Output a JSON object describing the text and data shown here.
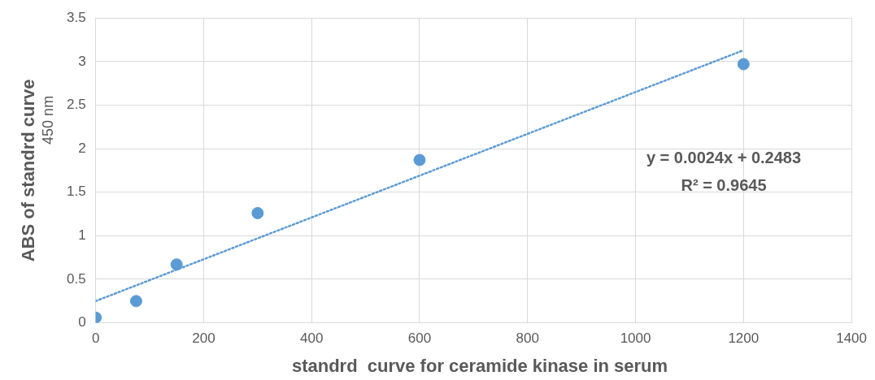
{
  "chart_data": {
    "type": "scatter",
    "xlabel": "standrd  curve for ceramide kinase in serum",
    "ylabel": "ABS of standrd curve\n450 nm",
    "annotations": [
      "y = 0.0024x + 0.2483",
      "R² = 0.9645"
    ],
    "series": [
      {
        "color": "#5b9bd5",
        "x": [
          0,
          75,
          150,
          300,
          600,
          1200
        ],
        "values": [
          0.06,
          0.25,
          0.67,
          1.26,
          1.87,
          2.97
        ],
        "marker": "circle"
      },
      {
        "type": "line",
        "color": "#5b9bd5",
        "x": [
          0,
          1200
        ],
        "values": [
          0.25,
          3.13
        ],
        "line_style": "dotted",
        "marker": "none"
      }
    ],
    "xlim": [
      0,
      1400
    ],
    "xticks": [
      0,
      200,
      400,
      600,
      800,
      1000,
      1200,
      1400
    ],
    "ylim": [
      0,
      3.5
    ],
    "yticks": [
      0,
      0.5,
      1,
      1.5,
      2,
      2.5,
      3,
      3.5
    ],
    "grid": true,
    "legend": false
  }
}
